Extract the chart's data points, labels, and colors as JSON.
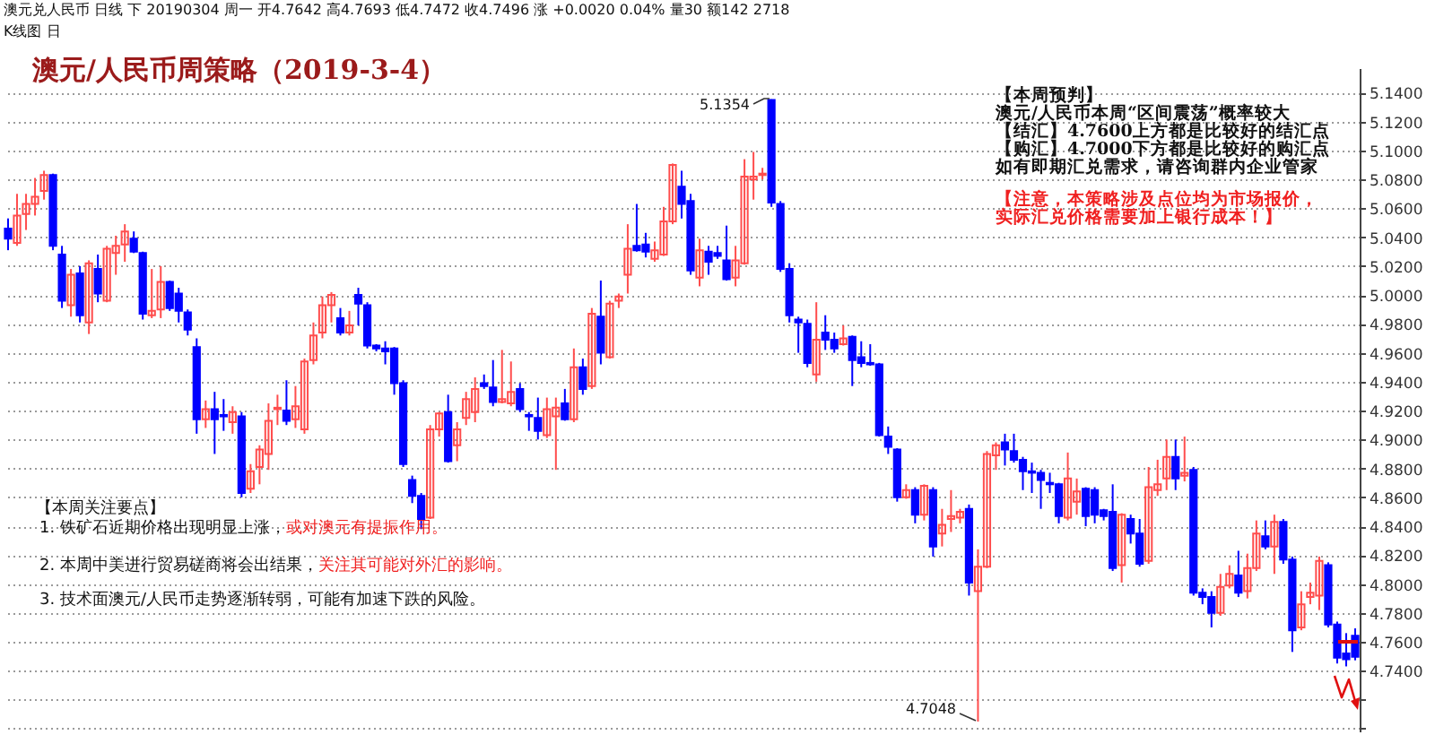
{
  "chart_data": {
    "type": "candlestick",
    "title": "澳元/人民币周策略（2019-3-4）",
    "annotations": [
      "澳元兑人民币 日线 下 20190304 周一 开4.7642 高4.7693 低4.7472 收4.7496 涨 +0.0020 0.04% 量30 额142 2718",
      "K线图 日",
      "5.1354",
      "4.7048",
      "【本周预判】",
      "澳元/人民币本周“区间震荡”概率较大",
      "【结汇】4.7600上方都是比较好的结汇点",
      "【购汇】4.7000下方都是比较好的购汇点",
      "如有即期汇兑需求，请咨询群内企业管家",
      "【注意，本策略涉及点位均为市场报价，",
      "实际汇兑价格需要加上银行成本！】",
      "【本周关注要点】",
      "1. 铁矿石近期价格出现明显上涨，",
      "或对澳元有提振作用。",
      "2. 本周中美进行贸易磋商将会出结果，",
      "关注其可能对外汇的影响。",
      "3. 技术面澳元/人民币走势逐渐转弱，可能有加速下跌的风险。"
    ],
    "categories": [
      null,
      null,
      null,
      null,
      null,
      null,
      null,
      null,
      null,
      null,
      null,
      null,
      null,
      null,
      null,
      null,
      null,
      null,
      null,
      null,
      null,
      null,
      null,
      null,
      null,
      null,
      null,
      null,
      null,
      null,
      null,
      null,
      null,
      null,
      null,
      null,
      null,
      null,
      null,
      null,
      null,
      null,
      null,
      null,
      null,
      null,
      null,
      null,
      null,
      null,
      null,
      null,
      null,
      null,
      null,
      null,
      null,
      null,
      null,
      null,
      null,
      null,
      null,
      null,
      null,
      null,
      null,
      null,
      null,
      null,
      null,
      null,
      null,
      null,
      null,
      null,
      null,
      null,
      null,
      null,
      null,
      null,
      null,
      null,
      null,
      null,
      null,
      null,
      null,
      null,
      null,
      null,
      null,
      null,
      null,
      null,
      null,
      null,
      null,
      null,
      null,
      null,
      null,
      null,
      null,
      null,
      null,
      null,
      null,
      null,
      null,
      null,
      null,
      null,
      null,
      null,
      null,
      null,
      null,
      null,
      null,
      null,
      null,
      null,
      null,
      null,
      null,
      null,
      null,
      null,
      null,
      null,
      null,
      null,
      null,
      null,
      null,
      null,
      null,
      null,
      null,
      null,
      null,
      null,
      null,
      null,
      null,
      null,
      null,
      null,
      null
    ],
    "ohlc": [
      [
        5.046,
        5.053,
        5.031,
        5.039
      ],
      [
        5.036,
        5.07,
        5.034,
        5.055
      ],
      [
        5.056,
        5.07,
        5.045,
        5.063
      ],
      [
        5.063,
        5.081,
        5.055,
        5.068
      ],
      [
        5.072,
        5.086,
        5.066,
        5.083
      ],
      [
        5.083,
        5.084,
        5.031,
        5.034
      ],
      [
        5.028,
        5.034,
        4.991,
        4.996
      ],
      [
        4.993,
        5.018,
        4.985,
        5.014
      ],
      [
        5.015,
        5.02,
        4.981,
        4.986
      ],
      [
        4.981,
        5.024,
        4.973,
        5.022
      ],
      [
        5.018,
        5.028,
        4.995,
        5.001
      ],
      [
        4.996,
        5.034,
        4.995,
        5.032
      ],
      [
        5.029,
        5.041,
        5.014,
        5.034
      ],
      [
        5.035,
        5.049,
        5.023,
        5.044
      ],
      [
        5.039,
        5.044,
        5.029,
        5.03
      ],
      [
        5.029,
        5.03,
        4.983,
        4.987
      ],
      [
        4.986,
        5.018,
        4.984,
        4.989
      ],
      [
        4.99,
        5.02,
        4.984,
        5.009
      ],
      [
        5.009,
        5.01,
        4.989,
        4.991
      ],
      [
        5.001,
        5.005,
        4.981,
        4.989
      ],
      [
        4.988,
        4.99,
        4.972,
        4.976
      ],
      [
        4.964,
        4.97,
        4.904,
        4.914
      ],
      [
        4.914,
        4.927,
        4.908,
        4.921
      ],
      [
        4.921,
        4.933,
        4.89,
        4.914
      ],
      [
        4.917,
        4.928,
        4.906,
        4.916
      ],
      [
        4.912,
        4.923,
        4.904,
        4.919
      ],
      [
        4.916,
        4.919,
        4.86,
        4.863
      ],
      [
        4.866,
        4.883,
        4.863,
        4.878
      ],
      [
        4.881,
        4.896,
        4.869,
        4.893
      ],
      [
        4.89,
        4.925,
        4.879,
        4.913
      ],
      [
        4.921,
        4.931,
        4.91,
        4.922
      ],
      [
        4.92,
        4.941,
        4.91,
        4.913
      ],
      [
        4.914,
        4.937,
        4.908,
        4.923
      ],
      [
        4.907,
        4.956,
        4.904,
        4.954
      ],
      [
        4.955,
        4.981,
        4.952,
        4.972
      ],
      [
        4.974,
        4.999,
        4.97,
        4.993
      ],
      [
        4.993,
        5.002,
        4.981,
        5.0
      ],
      [
        4.984,
        4.991,
        4.972,
        4.974
      ],
      [
        4.974,
        4.989,
        4.972,
        4.979
      ],
      [
        5.0,
        5.005,
        4.979,
        4.994
      ],
      [
        4.993,
        4.995,
        4.963,
        4.965
      ],
      [
        4.965,
        4.966,
        4.961,
        4.963
      ],
      [
        4.963,
        4.968,
        4.952,
        4.961
      ],
      [
        4.963,
        4.964,
        4.931,
        4.939
      ],
      [
        4.939,
        4.941,
        4.881,
        4.883
      ],
      [
        4.872,
        4.875,
        4.856,
        4.861
      ],
      [
        4.861,
        4.863,
        4.838,
        4.845
      ],
      [
        4.846,
        4.91,
        4.845,
        4.907
      ],
      [
        4.907,
        4.919,
        4.902,
        4.918
      ],
      [
        4.919,
        4.931,
        4.884,
        4.885
      ],
      [
        4.896,
        4.912,
        4.885,
        4.907
      ],
      [
        4.915,
        4.933,
        4.91,
        4.928
      ],
      [
        4.919,
        4.943,
        4.912,
        4.935
      ],
      [
        4.939,
        4.945,
        4.935,
        4.937
      ],
      [
        4.936,
        4.955,
        4.923,
        4.926
      ],
      [
        4.926,
        4.962,
        4.925,
        4.928
      ],
      [
        4.925,
        4.954,
        4.923,
        4.933
      ],
      [
        4.935,
        4.939,
        4.919,
        4.921
      ],
      [
        4.917,
        4.919,
        4.906,
        4.916
      ],
      [
        4.915,
        4.929,
        4.9,
        4.906
      ],
      [
        4.903,
        4.929,
        4.901,
        4.921
      ],
      [
        4.916,
        4.929,
        4.879,
        4.922
      ],
      [
        4.925,
        4.935,
        4.913,
        4.914
      ],
      [
        4.914,
        4.963,
        4.912,
        4.95
      ],
      [
        4.95,
        4.956,
        4.931,
        4.935
      ],
      [
        4.937,
        4.991,
        4.935,
        4.987
      ],
      [
        4.985,
        5.01,
        4.952,
        4.96
      ],
      [
        4.957,
        4.996,
        4.956,
        4.994
      ],
      [
        4.996,
        5.001,
        4.991,
        4.999
      ],
      [
        5.014,
        5.049,
        5.001,
        5.032
      ],
      [
        5.034,
        5.063,
        5.03,
        5.031
      ],
      [
        5.035,
        5.043,
        5.026,
        5.03
      ],
      [
        5.025,
        5.037,
        5.023,
        5.031
      ],
      [
        5.028,
        5.061,
        5.027,
        5.051
      ],
      [
        5.051,
        5.091,
        5.049,
        5.09
      ],
      [
        5.075,
        5.086,
        5.053,
        5.063
      ],
      [
        5.065,
        5.07,
        5.014,
        5.017
      ],
      [
        5.012,
        5.039,
        5.006,
        5.031
      ],
      [
        5.03,
        5.034,
        5.014,
        5.023
      ],
      [
        5.029,
        5.034,
        5.025,
        5.027
      ],
      [
        5.024,
        5.048,
        5.01,
        5.011
      ],
      [
        5.012,
        5.034,
        5.006,
        5.024
      ],
      [
        5.022,
        5.094,
        5.021,
        5.082
      ],
      [
        5.08,
        5.099,
        5.066,
        5.082
      ],
      [
        5.083,
        5.088,
        5.08,
        5.084
      ],
      [
        5.135,
        5.1354,
        5.061,
        5.064
      ],
      [
        5.063,
        5.065,
        5.016,
        5.018
      ],
      [
        5.018,
        5.022,
        4.981,
        4.986
      ],
      [
        4.983,
        4.985,
        4.96,
        4.981
      ],
      [
        4.98,
        4.983,
        4.95,
        4.953
      ],
      [
        4.945,
        4.995,
        4.94,
        4.969
      ],
      [
        4.974,
        4.986,
        4.962,
        4.969
      ],
      [
        4.969,
        4.974,
        4.96,
        4.963
      ],
      [
        4.966,
        4.979,
        4.965,
        4.97
      ],
      [
        4.971,
        4.972,
        4.937,
        4.955
      ],
      [
        4.957,
        4.968,
        4.95,
        4.953
      ],
      [
        4.953,
        4.966,
        4.951,
        4.952
      ],
      [
        4.952,
        4.953,
        4.902,
        4.903
      ],
      [
        4.902,
        4.909,
        4.89,
        4.895
      ],
      [
        4.893,
        4.894,
        4.857,
        4.86
      ],
      [
        4.86,
        4.869,
        4.859,
        4.865
      ],
      [
        4.865,
        4.867,
        4.842,
        4.848
      ],
      [
        4.848,
        4.869,
        4.844,
        4.868
      ],
      [
        4.865,
        4.867,
        4.819,
        4.826
      ],
      [
        4.835,
        4.852,
        4.826,
        4.841
      ],
      [
        4.845,
        4.865,
        4.836,
        4.847
      ],
      [
        4.846,
        4.852,
        4.842,
        4.85
      ],
      [
        4.852,
        4.855,
        4.792,
        4.801
      ],
      [
        4.795,
        4.824,
        4.7048,
        4.812
      ],
      [
        4.812,
        4.892,
        4.811,
        4.89
      ],
      [
        4.889,
        4.898,
        4.879,
        4.896
      ],
      [
        4.898,
        4.904,
        4.882,
        4.893
      ],
      [
        4.892,
        4.904,
        4.884,
        4.886
      ],
      [
        4.886,
        4.888,
        4.865,
        4.878
      ],
      [
        4.878,
        4.884,
        4.863,
        4.877
      ],
      [
        4.877,
        4.879,
        4.852,
        4.872
      ],
      [
        4.87,
        4.877,
        4.863,
        4.869
      ],
      [
        4.869,
        4.87,
        4.842,
        4.847
      ],
      [
        4.846,
        4.891,
        4.844,
        4.873
      ],
      [
        4.857,
        4.873,
        4.848,
        4.864
      ],
      [
        4.866,
        4.867,
        4.84,
        4.847
      ],
      [
        4.865,
        4.867,
        4.842,
        4.848
      ],
      [
        4.851,
        4.852,
        4.844,
        4.847
      ],
      [
        4.85,
        4.869,
        4.809,
        4.811
      ],
      [
        4.813,
        4.849,
        4.801,
        4.848
      ],
      [
        4.845,
        4.848,
        4.828,
        4.835
      ],
      [
        4.835,
        4.845,
        4.812,
        4.814
      ],
      [
        4.816,
        4.881,
        4.814,
        4.867
      ],
      [
        4.865,
        4.886,
        4.861,
        4.869
      ],
      [
        4.873,
        4.9,
        4.865,
        4.888
      ],
      [
        4.888,
        4.9,
        4.865,
        4.873
      ],
      [
        4.875,
        4.902,
        4.871,
        4.877
      ],
      [
        4.879,
        4.881,
        4.792,
        4.794
      ],
      [
        4.794,
        4.797,
        4.786,
        4.791
      ],
      [
        4.791,
        4.795,
        4.77,
        4.78
      ],
      [
        4.78,
        4.807,
        4.778,
        4.798
      ],
      [
        4.799,
        4.813,
        4.797,
        4.807
      ],
      [
        4.806,
        4.823,
        4.791,
        4.794
      ],
      [
        4.795,
        4.821,
        4.79,
        4.811
      ],
      [
        4.811,
        4.844,
        4.809,
        4.835
      ],
      [
        4.833,
        4.844,
        4.824,
        4.826
      ],
      [
        4.826,
        4.848,
        4.807,
        4.843
      ],
      [
        4.843,
        4.845,
        4.814,
        4.817
      ],
      [
        4.817,
        4.819,
        4.753,
        4.768
      ],
      [
        4.77,
        4.795,
        4.768,
        4.786
      ],
      [
        4.791,
        4.801,
        4.786,
        4.794
      ],
      [
        4.792,
        4.819,
        4.782,
        4.816
      ],
      [
        4.813,
        4.815,
        4.77,
        4.772
      ],
      [
        4.772,
        4.774,
        4.745,
        4.749
      ],
      [
        4.752,
        4.766,
        4.743,
        4.748
      ],
      [
        4.7642,
        4.7693,
        4.7472,
        4.7496
      ]
    ],
    "colors": [
      "#0000ff",
      "#ff4d4d",
      "#ff4d4d",
      "#ff4d4d",
      "#ff4d4d",
      "#0000ff",
      "#0000ff",
      "#ff4d4d",
      "#0000ff",
      "#ff4d4d",
      "#0000ff",
      "#ff4d4d",
      "#ff4d4d",
      "#ff4d4d",
      "#0000ff",
      "#0000ff",
      "#ff4d4d",
      "#ff4d4d",
      "#0000ff",
      "#0000ff",
      "#0000ff",
      "#0000ff",
      "#ff4d4d",
      "#0000ff",
      "#0000ff",
      "#ff4d4d",
      "#0000ff",
      "#ff4d4d",
      "#ff4d4d",
      "#ff4d4d",
      "#ff4d4d",
      "#0000ff",
      "#ff4d4d",
      "#ff4d4d",
      "#ff4d4d",
      "#ff4d4d",
      "#ff4d4d",
      "#0000ff",
      "#ff4d4d",
      "#0000ff",
      "#0000ff",
      "#0000ff",
      "#0000ff",
      "#0000ff",
      "#0000ff",
      "#0000ff",
      "#0000ff",
      "#ff4d4d",
      "#ff4d4d",
      "#0000ff",
      "#ff4d4d",
      "#ff4d4d",
      "#ff4d4d",
      "#0000ff",
      "#0000ff",
      "#ff4d4d",
      "#ff4d4d",
      "#0000ff",
      "#0000ff",
      "#0000ff",
      "#ff4d4d",
      "#ff4d4d",
      "#0000ff",
      "#ff4d4d",
      "#0000ff",
      "#ff4d4d",
      "#0000ff",
      "#ff4d4d",
      "#ff4d4d",
      "#ff4d4d",
      "#0000ff",
      "#0000ff",
      "#ff4d4d",
      "#ff4d4d",
      "#ff4d4d",
      "#0000ff",
      "#0000ff",
      "#ff4d4d",
      "#0000ff",
      "#0000ff",
      "#0000ff",
      "#ff4d4d",
      "#ff4d4d",
      "#ff4d4d",
      "#ff4d4d",
      "#0000ff",
      "#0000ff",
      "#0000ff",
      "#0000ff",
      "#0000ff",
      "#ff4d4d",
      "#0000ff",
      "#0000ff",
      "#ff4d4d",
      "#0000ff",
      "#0000ff",
      "#0000ff",
      "#0000ff",
      "#0000ff",
      "#0000ff",
      "#ff4d4d",
      "#0000ff",
      "#ff4d4d",
      "#0000ff",
      "#ff4d4d",
      "#ff4d4d",
      "#ff4d4d",
      "#0000ff",
      "#ff4d4d",
      "#ff4d4d",
      "#ff4d4d",
      "#0000ff",
      "#0000ff",
      "#0000ff",
      "#0000ff",
      "#0000ff",
      "#0000ff",
      "#0000ff",
      "#ff4d4d",
      "#ff4d4d",
      "#0000ff",
      "#0000ff",
      "#0000ff",
      "#0000ff",
      "#ff4d4d",
      "#0000ff",
      "#0000ff",
      "#ff4d4d",
      "#ff4d4d",
      "#ff4d4d",
      "#0000ff",
      "#ff4d4d",
      "#0000ff",
      "#0000ff",
      "#0000ff",
      "#ff4d4d",
      "#ff4d4d",
      "#0000ff",
      "#ff4d4d",
      "#ff4d4d",
      "#0000ff",
      "#ff4d4d",
      "#0000ff",
      "#0000ff",
      "#ff4d4d",
      "#ff4d4d",
      "#ff4d4d",
      "#0000ff",
      "#0000ff",
      "#0000ff",
      "#0000ff"
    ],
    "ylim": [
      4.698,
      5.157
    ],
    "yticks": [
      {
        "value": 4.7,
        "label": null
      },
      {
        "value": 4.72,
        "label": null
      },
      {
        "value": 4.74,
        "label": "4.7400"
      },
      {
        "value": 4.76,
        "label": "4.7600"
      },
      {
        "value": 4.78,
        "label": "4.7800"
      },
      {
        "value": 4.8,
        "label": "4.8000"
      },
      {
        "value": 4.82,
        "label": "4.8200"
      },
      {
        "value": 4.84,
        "label": "4.8400"
      },
      {
        "value": 4.86,
        "label": "4.8600"
      },
      {
        "value": 4.88,
        "label": "4.8800"
      },
      {
        "value": 4.9,
        "label": "4.9000"
      },
      {
        "value": 4.92,
        "label": "4.9200"
      },
      {
        "value": 4.94,
        "label": "4.9400"
      },
      {
        "value": 4.96,
        "label": "4.9600"
      },
      {
        "value": 4.98,
        "label": "4.9800"
      },
      {
        "value": 5.0,
        "label": "5.0000"
      },
      {
        "value": 5.02,
        "label": "5.0200"
      },
      {
        "value": 5.04,
        "label": "5.0400"
      },
      {
        "value": 5.06,
        "label": "5.0600"
      },
      {
        "value": 5.08,
        "label": "5.0800"
      },
      {
        "value": 5.1,
        "label": "5.1000"
      },
      {
        "value": 5.12,
        "label": "5.1200"
      },
      {
        "value": 5.14,
        "label": "5.1400"
      }
    ],
    "grid": "y",
    "tick_labels": "y"
  }
}
